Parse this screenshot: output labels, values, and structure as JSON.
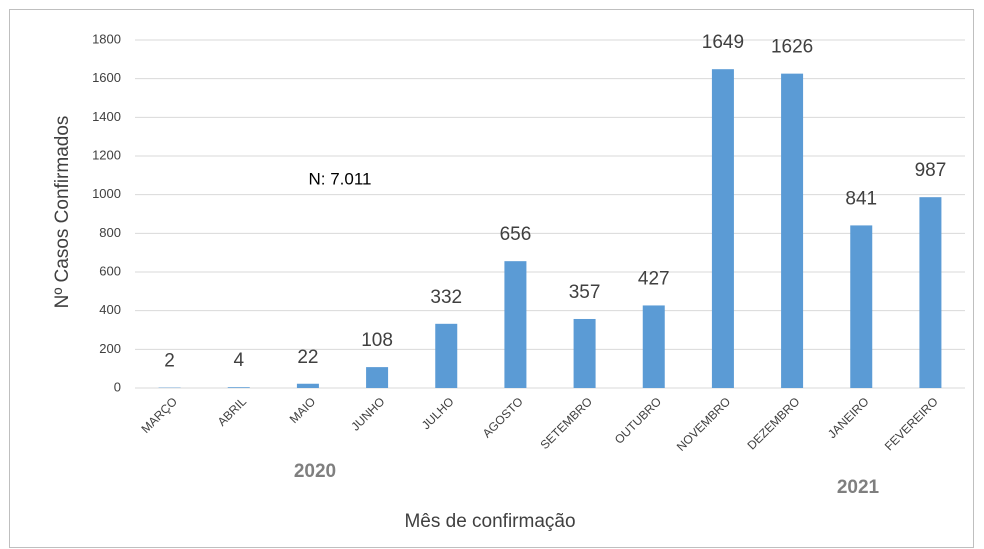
{
  "chart_data": {
    "type": "bar",
    "categories": [
      "MARÇO",
      "ABRIL",
      "MAIO",
      "JUNHO",
      "JULHO",
      "AGOSTO",
      "SETEMBRO",
      "OUTUBRO",
      "NOVEMBRO",
      "DEZEMBRO",
      "JANEIRO",
      "FEVEREIRO"
    ],
    "values": [
      2,
      4,
      22,
      108,
      332,
      656,
      357,
      427,
      1649,
      1626,
      841,
      987
    ],
    "color": "#5b9bd5",
    "ylim": [
      0,
      1800
    ],
    "yticks": [
      0,
      200,
      400,
      600,
      800,
      1000,
      1200,
      1400,
      1600,
      1800
    ],
    "grid": true,
    "y_label": "Nº Casos Confirmados",
    "x_label": "Mês de confirmação",
    "annotations": [
      "N: 7.011",
      "2020",
      "2021"
    ]
  }
}
